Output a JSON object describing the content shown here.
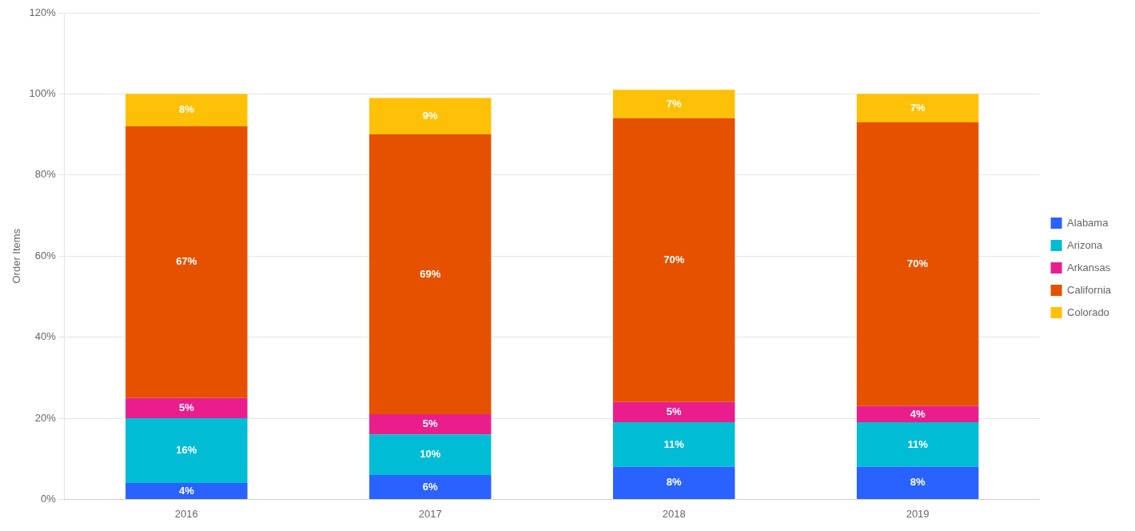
{
  "chart_data": {
    "type": "bar",
    "stacked": true,
    "data_labels": true,
    "grid": true,
    "legend": "right",
    "ylabel": "Order Items",
    "categories": [
      "2016",
      "2017",
      "2018",
      "2019"
    ],
    "series": [
      {
        "name": "Alabama",
        "color": "#2962FF",
        "values": [
          4,
          6,
          8,
          8
        ],
        "value_labels": [
          "4%",
          "6%",
          "8%",
          "8%"
        ]
      },
      {
        "name": "Arizona",
        "color": "#00BCD4",
        "values": [
          16,
          10,
          11,
          11
        ],
        "value_labels": [
          "16%",
          "10%",
          "11%",
          "11%"
        ]
      },
      {
        "name": "Arkansas",
        "color": "#E91E8C",
        "values": [
          5,
          5,
          5,
          4
        ],
        "value_labels": [
          "5%",
          "5%",
          "5%",
          "4%"
        ]
      },
      {
        "name": "California",
        "color": "#E65100",
        "values": [
          67,
          69,
          70,
          70
        ],
        "value_labels": [
          "67%",
          "69%",
          "70%",
          "70%"
        ]
      },
      {
        "name": "Colorado",
        "color": "#FFC107",
        "values": [
          8,
          9,
          7,
          7
        ],
        "value_labels": [
          "8%",
          "9%",
          "7%",
          "7%"
        ]
      }
    ],
    "ylim": [
      0,
      120
    ],
    "yticks": [
      {
        "value": 0,
        "label": "0%"
      },
      {
        "value": 20,
        "label": "20%"
      },
      {
        "value": 40,
        "label": "40%"
      },
      {
        "value": 60,
        "label": "60%"
      },
      {
        "value": 80,
        "label": "80%"
      },
      {
        "value": 100,
        "label": "100%"
      },
      {
        "value": 120,
        "label": "120%"
      }
    ]
  }
}
